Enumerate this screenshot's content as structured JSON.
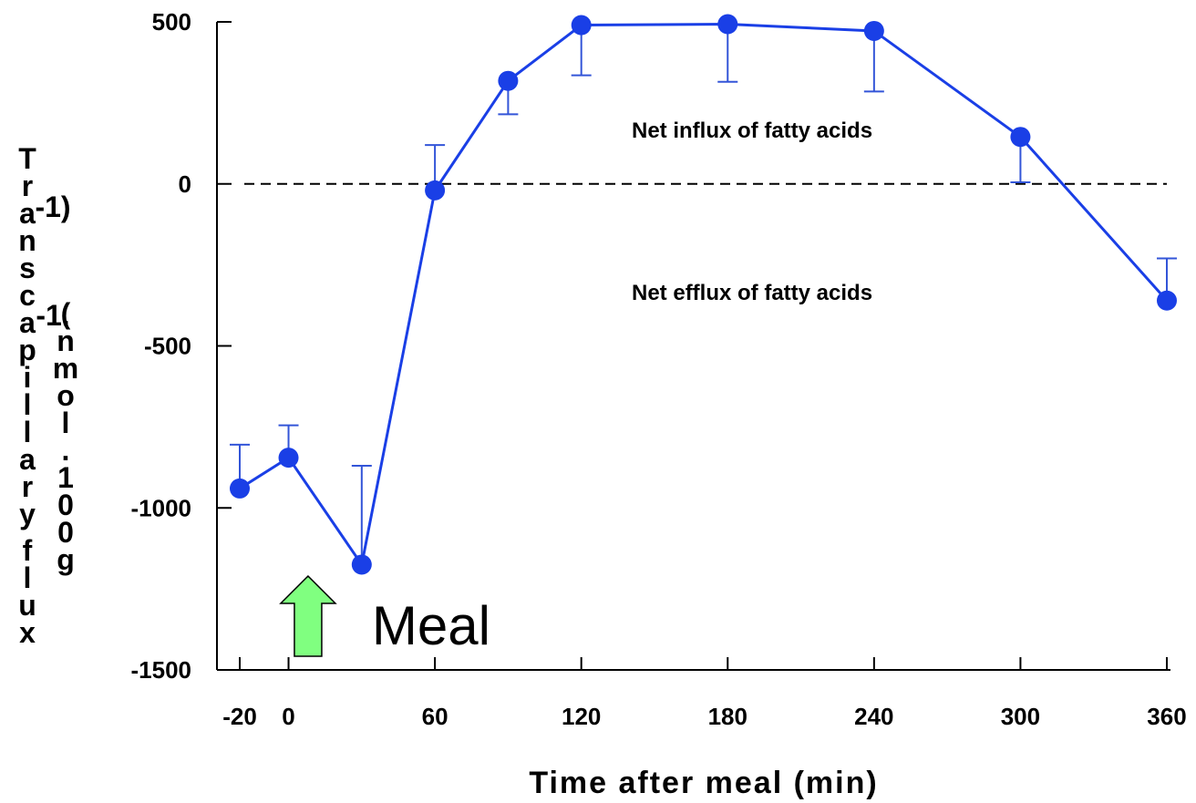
{
  "chart_data": {
    "type": "line",
    "title": "",
    "xlabel": "Time after meal (min)",
    "ylabel": "Transcapillary flux (nmol.100g-1.min-1)",
    "xlim": [
      -20,
      360
    ],
    "ylim": [
      -1500,
      500
    ],
    "xticks": [
      -20,
      0,
      60,
      120,
      180,
      240,
      300,
      360
    ],
    "yticks": [
      500,
      0,
      -500,
      -1000,
      -1500
    ],
    "series": [
      {
        "color": "#1a3fe6",
        "x": [
          -20,
          0,
          30,
          60,
          90,
          120,
          180,
          240,
          300,
          360
        ],
        "y": [
          -940,
          -845,
          -1175,
          -20,
          318,
          490,
          493,
          472,
          145,
          -360
        ],
        "error_upper": [
          -805,
          -745,
          -870,
          120,
          215,
          335,
          315,
          285,
          5,
          -230
        ]
      }
    ],
    "zero_line": {
      "y": 0,
      "style": "dashed"
    },
    "annotations": [
      {
        "text": "Net influx of fatty acids",
        "x": 190,
        "y": 165
      },
      {
        "text": "Net efflux of fatty acids",
        "x": 190,
        "y": -335
      }
    ],
    "meal_marker": {
      "label": "Meal",
      "x": 8,
      "arrow_color": "#80ff80"
    }
  }
}
